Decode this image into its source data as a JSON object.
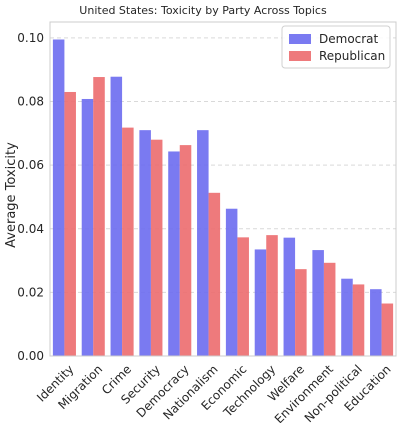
{
  "chart_data": {
    "type": "bar",
    "title": "United States: Toxicity by Party Across Topics",
    "xlabel": "",
    "ylabel": "Average Toxicity",
    "ylim": [
      0,
      0.105
    ],
    "yticks": [
      "0.00",
      "0.02",
      "0.04",
      "0.06",
      "0.08",
      "0.10"
    ],
    "categories": [
      "Identity",
      "Migration",
      "Crime",
      "Security",
      "Democracy",
      "Nationalism",
      "Economic",
      "Technology",
      "Welfare",
      "Environment",
      "Non-political",
      "Education"
    ],
    "series": [
      {
        "name": "Democrat",
        "color": "#6b6bf0",
        "values": [
          0.0995,
          0.0808,
          0.0878,
          0.071,
          0.0643,
          0.071,
          0.0463,
          0.0335,
          0.0372,
          0.0333,
          0.0243,
          0.021
        ]
      },
      {
        "name": "Republican",
        "color": "#ec6b6e",
        "values": [
          0.083,
          0.0877,
          0.0718,
          0.068,
          0.0663,
          0.0513,
          0.0373,
          0.038,
          0.0273,
          0.0293,
          0.0225,
          0.0165
        ]
      }
    ],
    "grid": true,
    "legend_position": "top-right"
  }
}
